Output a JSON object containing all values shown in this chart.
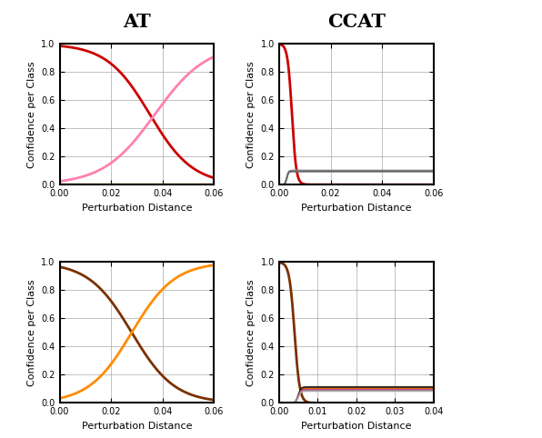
{
  "title_left": "AT",
  "title_right": "CCAT",
  "ylabel": "Confidence per Class",
  "xlabel": "Perturbation Distance",
  "subplot_configs": [
    {
      "xlim": [
        0,
        0.06
      ],
      "ylim": [
        0,
        1.0
      ],
      "xticks": [
        0,
        0.02,
        0.04,
        0.06
      ],
      "yticks": [
        0,
        0.2,
        0.4,
        0.6,
        0.8,
        1.0
      ],
      "lines": [
        {
          "color": "#cc0000",
          "type": "sigmoid_dec",
          "x0": 0.035,
          "k": 120,
          "lw": 2.0
        },
        {
          "color": "#ff80b0",
          "type": "sigmoid_inc",
          "x0": 0.037,
          "k": 100,
          "lw": 2.0
        },
        {
          "color": "#c8a060",
          "type": "flat",
          "yval": 0.005,
          "lw": 1.0
        }
      ]
    },
    {
      "xlim": [
        0,
        0.06
      ],
      "ylim": [
        0,
        1.0
      ],
      "xticks": [
        0,
        0.02,
        0.04,
        0.06
      ],
      "yticks": [
        0,
        0.2,
        0.4,
        0.6,
        0.8,
        1.0
      ],
      "lines": [
        {
          "color": "#cc0000",
          "type": "steep_dec",
          "x0": 0.005,
          "k": 1200,
          "yfloor": 0.0,
          "lw": 2.0
        },
        {
          "color": "#999999",
          "type": "flat_ramp",
          "yval": 0.1,
          "x_ramp": 0.003,
          "lw": 1.5
        },
        {
          "color": "#444444",
          "type": "flat_ramp",
          "yval": 0.095,
          "x_ramp": 0.003,
          "lw": 1.2
        },
        {
          "color": "#777777",
          "type": "flat_ramp",
          "yval": 0.092,
          "x_ramp": 0.003,
          "lw": 1.0
        }
      ]
    },
    {
      "xlim": [
        0,
        0.06
      ],
      "ylim": [
        0,
        1.0
      ],
      "xticks": [
        0,
        0.02,
        0.04,
        0.06
      ],
      "yticks": [
        0,
        0.2,
        0.4,
        0.6,
        0.8,
        1.0
      ],
      "lines": [
        {
          "color": "#7B3000",
          "type": "sigmoid_dec",
          "x0": 0.028,
          "k": 120,
          "lw": 2.0
        },
        {
          "color": "#FF8C00",
          "type": "sigmoid_inc",
          "x0": 0.028,
          "k": 120,
          "lw": 2.0
        },
        {
          "color": "#555555",
          "type": "flat",
          "yval": 0.003,
          "lw": 1.0
        }
      ]
    },
    {
      "xlim": [
        0,
        0.04
      ],
      "ylim": [
        0,
        1.0
      ],
      "xticks": [
        0,
        0.01,
        0.02,
        0.03,
        0.04
      ],
      "yticks": [
        0,
        0.2,
        0.4,
        0.6,
        0.8,
        1.0
      ],
      "lines": [
        {
          "color": "#7B3000",
          "type": "steep_dec",
          "x0": 0.004,
          "k": 1500,
          "yfloor": 0.0,
          "lw": 2.0
        },
        {
          "color": "#FF8C00",
          "type": "flat_ramp",
          "yval": 0.105,
          "x_ramp": 0.005,
          "lw": 1.5
        },
        {
          "color": "#111111",
          "type": "flat_ramp",
          "yval": 0.113,
          "x_ramp": 0.005,
          "lw": 1.2
        },
        {
          "color": "#cc3300",
          "type": "flat_ramp",
          "yval": 0.098,
          "x_ramp": 0.005,
          "lw": 1.0
        },
        {
          "color": "#cc44cc",
          "type": "flat_ramp",
          "yval": 0.093,
          "x_ramp": 0.005,
          "lw": 1.0
        },
        {
          "color": "#888888",
          "type": "flat_ramp",
          "yval": 0.088,
          "x_ramp": 0.005,
          "lw": 1.0
        },
        {
          "color": "#aaaaaa",
          "type": "flat_ramp",
          "yval": 0.083,
          "x_ramp": 0.005,
          "lw": 1.0
        }
      ]
    }
  ]
}
